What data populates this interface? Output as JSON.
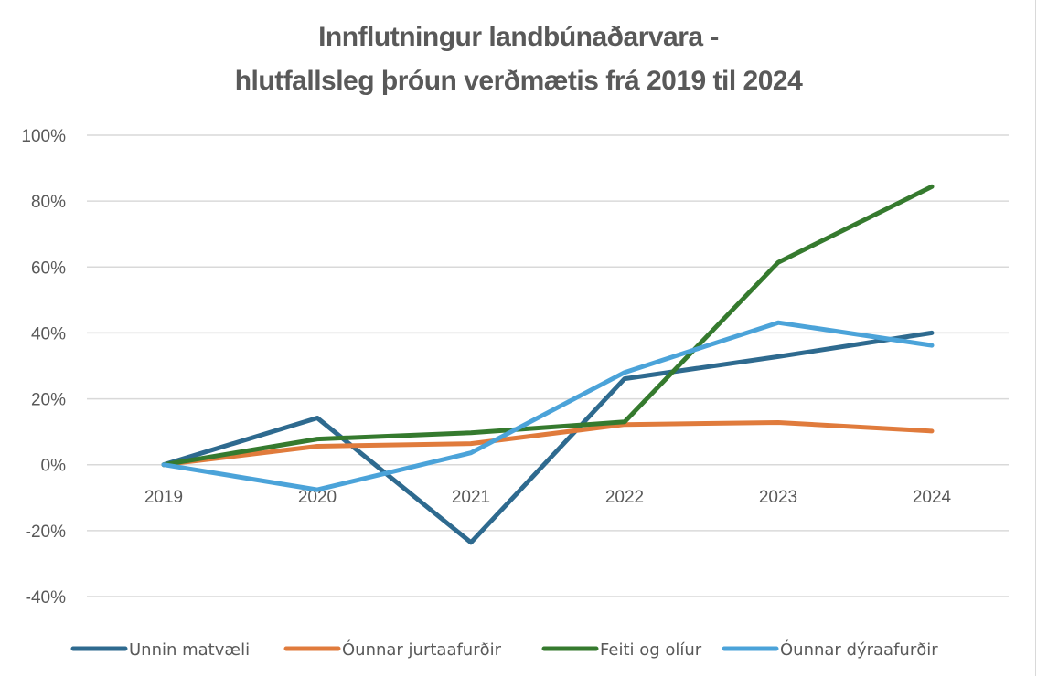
{
  "chart_data": {
    "type": "line",
    "title_lines": [
      "Innflutningur landbúnaðarvara -",
      "hlutfallsleg þróun verðmætis frá 2019 til 2024"
    ],
    "title": "Innflutningur landbúnaðarvara - hlutfallsleg þróun verðmætis frá 2019 til 2024",
    "xlabel": "",
    "ylabel": "",
    "categories": [
      "2019",
      "2020",
      "2021",
      "2022",
      "2023",
      "2024"
    ],
    "ylim": [
      -0.4,
      1.0
    ],
    "y_ticks": [
      1.0,
      0.8,
      0.6,
      0.4,
      0.2,
      0.0,
      -0.2,
      -0.4
    ],
    "y_tick_labels": [
      "100%",
      "80%",
      "60%",
      "40%",
      "20%",
      "0%",
      "-20%",
      "-40%"
    ],
    "grid": true,
    "legend_position": "bottom",
    "series": [
      {
        "name": "Unnin matvæli",
        "color": "#2E6A8F",
        "values": [
          0.0,
          0.142,
          -0.236,
          0.261,
          0.328,
          0.4
        ]
      },
      {
        "name": "Óunnar jurtaafurðir",
        "color": "#E07B3C",
        "values": [
          0.0,
          0.056,
          0.064,
          0.122,
          0.128,
          0.102
        ]
      },
      {
        "name": "Feiti og olíur",
        "color": "#357A2E",
        "values": [
          0.0,
          0.078,
          0.097,
          0.13,
          0.614,
          0.844
        ]
      },
      {
        "name": "Óunnar dýraafurðir",
        "color": "#4BA3D9",
        "values": [
          0.0,
          -0.076,
          0.036,
          0.28,
          0.431,
          0.362
        ]
      }
    ]
  }
}
